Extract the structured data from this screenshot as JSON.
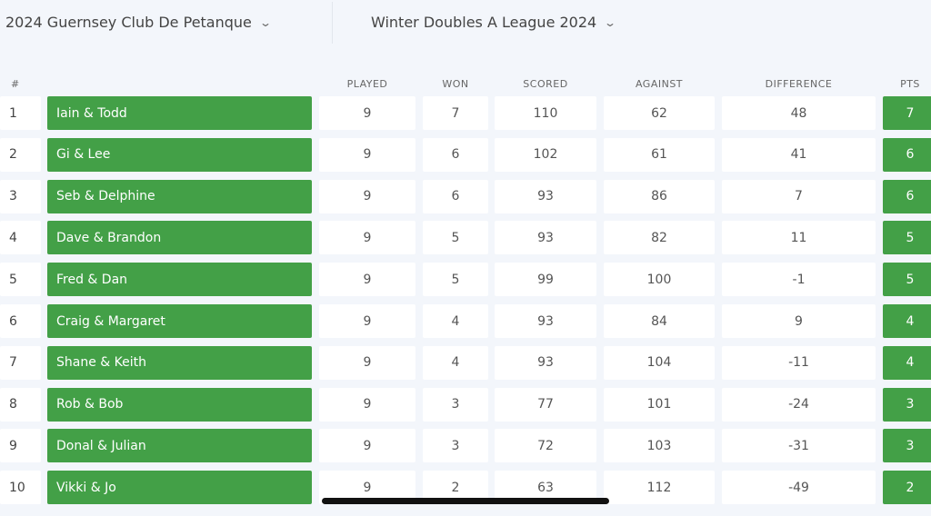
{
  "header": {
    "club": "2024 Guernsey Club De Petanque",
    "league": "Winter Doubles A League 2024",
    "dropdown_icon": "chevron-down-icon"
  },
  "colors": {
    "accent": "#43a047",
    "background": "#f3f6fb"
  },
  "table": {
    "columns": {
      "rank": "#",
      "team": "",
      "played": "PLAYED",
      "won": "WON",
      "scored": "SCORED",
      "against": "AGAINST",
      "difference": "DIFFERENCE",
      "pts": "PTS"
    },
    "rows": [
      {
        "rank": "1",
        "team": "Iain & Todd",
        "played": "9",
        "won": "7",
        "scored": "110",
        "against": "62",
        "difference": "48",
        "pts": "7"
      },
      {
        "rank": "2",
        "team": "Gi & Lee",
        "played": "9",
        "won": "6",
        "scored": "102",
        "against": "61",
        "difference": "41",
        "pts": "6"
      },
      {
        "rank": "3",
        "team": "Seb & Delphine",
        "played": "9",
        "won": "6",
        "scored": "93",
        "against": "86",
        "difference": "7",
        "pts": "6"
      },
      {
        "rank": "4",
        "team": "Dave & Brandon",
        "played": "9",
        "won": "5",
        "scored": "93",
        "against": "82",
        "difference": "11",
        "pts": "5"
      },
      {
        "rank": "5",
        "team": "Fred & Dan",
        "played": "9",
        "won": "5",
        "scored": "99",
        "against": "100",
        "difference": "-1",
        "pts": "5"
      },
      {
        "rank": "6",
        "team": "Craig & Margaret",
        "played": "9",
        "won": "4",
        "scored": "93",
        "against": "84",
        "difference": "9",
        "pts": "4"
      },
      {
        "rank": "7",
        "team": "Shane & Keith",
        "played": "9",
        "won": "4",
        "scored": "93",
        "against": "104",
        "difference": "-11",
        "pts": "4"
      },
      {
        "rank": "8",
        "team": "Rob & Bob",
        "played": "9",
        "won": "3",
        "scored": "77",
        "against": "101",
        "difference": "-24",
        "pts": "3"
      },
      {
        "rank": "9",
        "team": "Donal & Julian",
        "played": "9",
        "won": "3",
        "scored": "72",
        "against": "103",
        "difference": "-31",
        "pts": "3"
      },
      {
        "rank": "10",
        "team": "Vikki & Jo",
        "played": "9",
        "won": "2",
        "scored": "63",
        "against": "112",
        "difference": "-49",
        "pts": "2"
      }
    ]
  }
}
